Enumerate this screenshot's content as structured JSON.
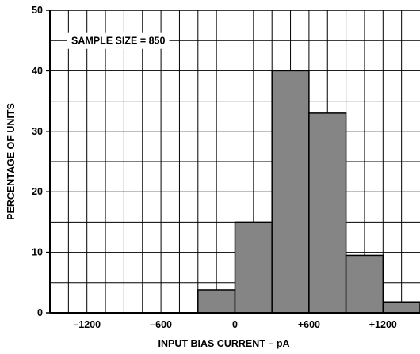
{
  "chart_data": {
    "type": "bar",
    "title": "",
    "xlabel": "INPUT BIAS CURRENT – pA",
    "ylabel": "PERCENTAGE OF UNITS",
    "annotation": "SAMPLE SIZE = 850",
    "xlim": [
      -1500,
      1500
    ],
    "ylim": [
      0,
      50
    ],
    "x_ticks": [
      -1200,
      -600,
      0,
      600,
      1200
    ],
    "x_tick_labels": [
      "–1200",
      "–600",
      "0",
      "+600",
      "+1200"
    ],
    "y_ticks": [
      0,
      10,
      20,
      30,
      40,
      50
    ],
    "y_tick_labels": [
      "0",
      "10",
      "20",
      "30",
      "40",
      "50"
    ],
    "grid": true,
    "bin_width": 300,
    "bins": [
      {
        "x0": -300,
        "x1": 0,
        "value": 3.8
      },
      {
        "x0": 0,
        "x1": 300,
        "value": 15
      },
      {
        "x0": 300,
        "x1": 600,
        "value": 40
      },
      {
        "x0": 600,
        "x1": 900,
        "value": 33
      },
      {
        "x0": 900,
        "x1": 1200,
        "value": 9.5
      },
      {
        "x0": 1200,
        "x1": 1500,
        "value": 1.8
      }
    ],
    "colors": {
      "bar": "#858585",
      "outline": "#000000",
      "grid": "#000000"
    }
  }
}
